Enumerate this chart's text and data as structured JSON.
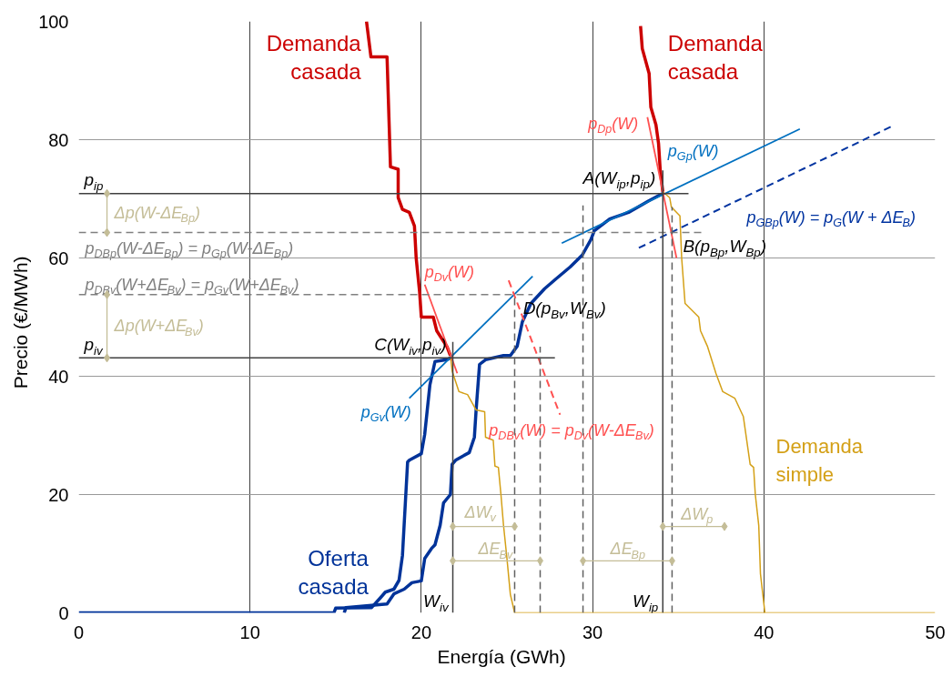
{
  "chart_data": {
    "type": "line",
    "xlabel": "Energía   (GWh)",
    "ylabel": "Precio   (€/MWh)",
    "xlim": [
      0,
      50
    ],
    "ylim": [
      0,
      100
    ],
    "xticks": [
      0,
      10,
      20,
      30,
      40,
      50
    ],
    "yticks": [
      0,
      20,
      40,
      60,
      80,
      100
    ],
    "grid": true,
    "series": [
      {
        "name": "Demanda casada",
        "color": "#cc0000",
        "x": [
          16.8,
          17.06,
          18.0,
          18.2,
          18.65,
          18.65,
          18.9,
          19.3,
          19.6,
          19.7,
          19.9,
          20.0,
          20.7,
          20.9,
          21.5,
          21.7
        ],
        "values": [
          100,
          94,
          94,
          75.4,
          75,
          70.2,
          68.2,
          67.7,
          65.4,
          60,
          54.3,
          50,
          50,
          47.7,
          45,
          43.5
        ]
      },
      {
        "name": "Demanda casada",
        "color": "#cc0000",
        "x": [
          32.8,
          32.9,
          33.3,
          33.4,
          33.7,
          33.85,
          33.95,
          34.1
        ],
        "values": [
          99.2,
          95.4,
          91.2,
          85.5,
          82.5,
          79.4,
          74.8,
          71.2
        ]
      },
      {
        "name": "Oferta casada",
        "color": "#003399",
        "x": [
          0,
          14.9,
          15.0,
          17.1,
          17.6,
          17.9,
          18.4,
          18.7,
          18.9,
          19.2,
          19.3,
          20.0,
          20.2,
          20.5,
          20.8,
          21.5,
          21.7
        ],
        "values": [
          0,
          0,
          0.8,
          0.9,
          2.5,
          3.5,
          4,
          5.5,
          9.7,
          25.5,
          25.8,
          26.9,
          30.2,
          38.5,
          42.5,
          42.8,
          43.1
        ]
      },
      {
        "color": "#003399",
        "x": [
          15.5,
          15.6,
          18.0,
          18.4,
          19.0,
          19.45,
          20.0,
          20.2,
          20.6,
          20.8,
          21.1,
          21.3,
          21.7,
          21.8,
          22.0,
          22.8,
          23.1,
          23.2,
          23.4,
          23.75,
          24.8,
          25.2,
          25.6,
          25.9,
          26.4,
          27.2,
          27.8,
          28.7,
          29.4,
          29.9,
          30.1,
          31.0,
          32.1,
          33.3,
          34.1
        ],
        "values": [
          0,
          0.9,
          1.5,
          3.2,
          4,
          5.1,
          5.4,
          9.2,
          10.9,
          11.5,
          14.8,
          18.6,
          20,
          25.1,
          25.8,
          27.1,
          29.7,
          34.3,
          42,
          42.8,
          43.5,
          43.5,
          45.1,
          49.2,
          52.3,
          54.8,
          56.3,
          58.5,
          60.5,
          63.1,
          64.6,
          66.6,
          67.7,
          69.7,
          70.9
        ]
      },
      {
        "color": "#d4a017",
        "x": [
          21.7,
          21.8,
          22.2,
          22.7,
          23.2,
          23.7,
          23.75,
          24.2,
          24.3,
          24.5,
          24.65,
          24.8,
          25.0,
          25.2,
          25.45,
          40.06
        ],
        "values": [
          43.5,
          40.9,
          37.4,
          36.9,
          34.3,
          34,
          29.7,
          29.2,
          24.8,
          24.6,
          20,
          14.8,
          9.2,
          3.1,
          0,
          0
        ]
      },
      {
        "name": "Demanda simple",
        "color": "#d4a017",
        "x": [
          34.1,
          34.5,
          34.6,
          35.1,
          35.2,
          35.4,
          36.2,
          36.3,
          36.7,
          37.2,
          37.6,
          38.3,
          38.8,
          39.2,
          39.4,
          39.5,
          39.7,
          39.8,
          40.06,
          50
        ],
        "values": [
          71.2,
          70.2,
          68.6,
          67.1,
          60,
          52.3,
          50,
          47.7,
          45.1,
          40.5,
          37.4,
          36.3,
          33.2,
          25.1,
          24.6,
          20,
          14.8,
          6.6,
          0,
          0
        ]
      },
      {
        "name": "p$_{Gv}$(W)",
        "color": "#0070c0",
        "x": [
          19.3,
          26.5
        ],
        "values": [
          36.3,
          56.9
        ]
      },
      {
        "name": "p$_{Gp}$(W)",
        "color": "#0070c0",
        "x": [
          28.2,
          42.1
        ],
        "values": [
          62.5,
          81.8
        ]
      },
      {
        "name": "p$_{GBp}$(W) = p$_{G}$(W + ΔE$_{B}$)",
        "color": "#0033a0",
        "line_style": "dashed",
        "x": [
          32.7,
          47.5
        ],
        "values": [
          61.7,
          82.3
        ]
      },
      {
        "name": "p$_{Dp}$(W)",
        "color": "#ff5050",
        "x": [
          33.2,
          34.9
        ],
        "values": [
          83.8,
          60
        ]
      },
      {
        "name": "p$_{Dv}$(W)",
        "color": "#ff5050",
        "x": [
          20.2,
          22.1
        ],
        "values": [
          55.5,
          40.5
        ]
      },
      {
        "name": "p$_{DBv}$(W) = p$_{Dv}$(W-ΔE$_{Bv}$)",
        "color": "#ff5050",
        "line_style": "dashed",
        "x": [
          25.1,
          28.1
        ],
        "values": [
          56.2,
          33.5
        ]
      },
      {
        "name": "p$_{DBp}$(W-ΔE$_{Bp}$) = p$_{Gp}$(W-ΔE$_{Bp}$)",
        "color": "#808080",
        "line_style": "dashed",
        "x": [
          0,
          36.5
        ],
        "values": [
          64.3,
          64.3
        ]
      },
      {
        "name": "p$_{DBv}$(W+ΔE$_{Bv}$) = p$_{Gv}$(W+ΔE$_{Bv}$)",
        "color": "#808080",
        "line_style": "dashed",
        "x": [
          0,
          26.5
        ],
        "values": [
          53.8,
          53.8
        ]
      },
      {
        "color": "#404040",
        "x": [
          0,
          35.6
        ],
        "values": [
          70.9,
          70.9
        ]
      },
      {
        "color": "#404040",
        "x": [
          0,
          27.8
        ],
        "values": [
          43.1,
          43.1
        ]
      },
      {
        "color": "#404040",
        "x": [
          21.84,
          21.84
        ],
        "values": [
          0,
          45.8
        ]
      },
      {
        "color": "#404040",
        "x": [
          34.1,
          34.1
        ],
        "values": [
          0,
          74.8
        ]
      },
      {
        "color": "#606060",
        "line_style": "dashed",
        "x": [
          25.45,
          25.45
        ],
        "values": [
          0,
          53.8
        ]
      },
      {
        "color": "#606060",
        "line_style": "dashed",
        "x": [
          26.94,
          26.94
        ],
        "values": [
          0,
          45
        ]
      },
      {
        "color": "#606060",
        "line_style": "dashed",
        "x": [
          29.44,
          29.44
        ],
        "values": [
          0,
          68.9
        ]
      },
      {
        "color": "#606060",
        "line_style": "dashed",
        "x": [
          34.64,
          34.64
        ],
        "values": [
          0,
          68.6
        ]
      },
      {
        "name": "Δp(W-ΔE$_{Bp}$)",
        "color": "#c4bd97",
        "marker": "diamond",
        "x": [
          1.65,
          1.65
        ],
        "values": [
          70.9,
          64.3
        ]
      },
      {
        "name": "Δp(W+ΔE$_{Bv}$)",
        "color": "#c4bd97",
        "marker": "diamond",
        "x": [
          1.65,
          1.65
        ],
        "values": [
          43.1,
          53.8
        ]
      },
      {
        "name": "ΔW$_{v}$",
        "color": "#c4bd97",
        "marker": "diamond",
        "x": [
          21.84,
          25.45
        ],
        "values": [
          14.6,
          14.6
        ]
      },
      {
        "name": "ΔE$_{Bv}$",
        "color": "#c4bd97",
        "marker": "diamond",
        "x": [
          21.84,
          26.94
        ],
        "values": [
          8.8,
          8.8
        ]
      },
      {
        "name": "ΔE$_{Bp}$",
        "color": "#c4bd97",
        "marker": "diamond",
        "x": [
          29.44,
          34.64
        ],
        "values": [
          8.8,
          8.8
        ]
      },
      {
        "name": "ΔW$_{p}$",
        "color": "#c4bd97",
        "marker": "diamond",
        "x": [
          34.1,
          37.7
        ],
        "values": [
          14.6,
          14.6
        ]
      }
    ],
    "annotations": [
      {
        "text": "A(W$_{ip}$,p$_{ip}$)",
        "x": 34.1,
        "y": 70.9
      },
      {
        "text": "B(p$_{Bp}$,W$_{Bp}$)",
        "x": 34.8,
        "y": 63.8
      },
      {
        "text": "C(W$_{iv}$,p$_{iv}$)",
        "x": 21.84,
        "y": 43.1
      },
      {
        "text": "D(p$_{Bv}$,W$_{Bv}$)",
        "x": 25.3,
        "y": 54
      },
      {
        "text": "p$_{ip}$",
        "x": 0,
        "y": 70.9
      },
      {
        "text": "p$_{iv}$",
        "x": 0,
        "y": 43.1
      },
      {
        "text": "W$_{iv}$",
        "x": 21.84,
        "y": 0
      },
      {
        "text": "W$_{ip}$",
        "x": 34.1,
        "y": 0
      }
    ]
  }
}
